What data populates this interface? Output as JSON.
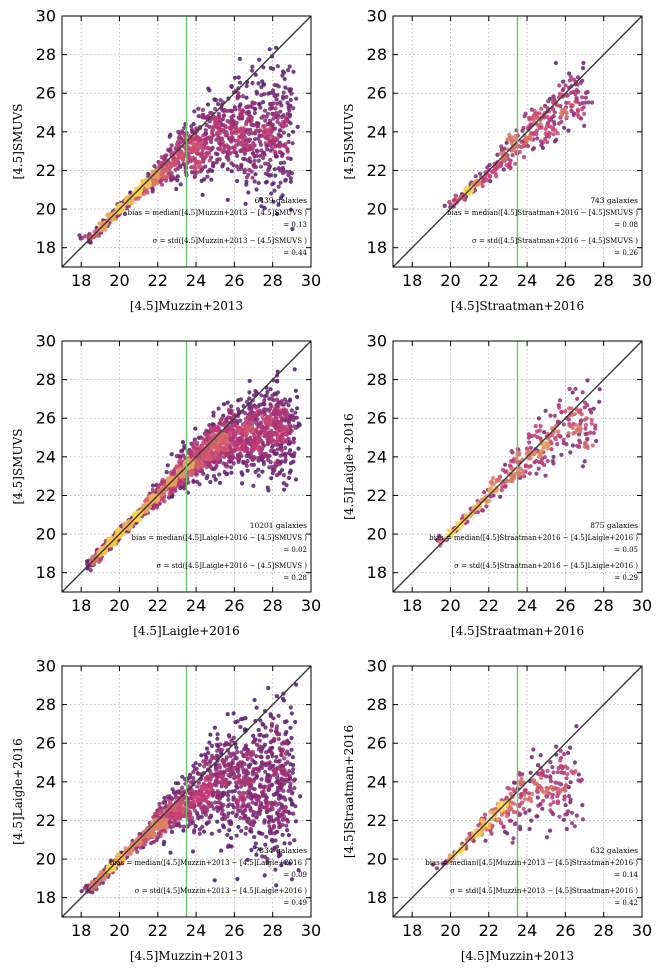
{
  "colors": {
    "identity_line": "#3a3a3a",
    "cut_line": "#6cc26c",
    "grid": "#b0b0b0",
    "density_low": "#2a0f6e",
    "density_mid": "#c23b75",
    "density_high": "#fbd34a"
  },
  "chart_data": [
    {
      "type": "scatter",
      "xlabel": "[4.5]Muzzin+2013",
      "ylabel": "[4.5]SMUVS",
      "xlim": [
        17,
        30
      ],
      "ylim": [
        17,
        30
      ],
      "xticks": [
        "18",
        "20",
        "22",
        "24",
        "26",
        "28",
        "30"
      ],
      "yticks": [
        "18",
        "20",
        "22",
        "24",
        "26",
        "28",
        "30"
      ],
      "grid": true,
      "identity_line": true,
      "vertical_cut_x": 23.5,
      "n_galaxies": 6439,
      "count_text": "6439 galaxies",
      "bias_formula": "bias = median([4.5]Muzzin+2013 − [4.5]SMUVS )",
      "bias_value": 0.13,
      "bias_text": "= 0.13",
      "sigma_formula": "σ = std([4.5]Muzzin+2013 − [4.5]SMUVS )",
      "sigma_value": 0.44,
      "sigma_text": "= 0.44",
      "trend": {
        "x": [
          18.5,
          20,
          22,
          23,
          24,
          25,
          26,
          27,
          28,
          29
        ],
        "y": [
          18.5,
          20.0,
          21.8,
          22.8,
          23.3,
          23.7,
          24.0,
          24.1,
          24.1,
          24.0
        ]
      }
    },
    {
      "type": "scatter",
      "xlabel": "[4.5]Straatman+2016",
      "ylabel": "[4.5]SMUVS",
      "xlim": [
        17,
        30
      ],
      "ylim": [
        17,
        30
      ],
      "xticks": [
        "18",
        "20",
        "22",
        "24",
        "26",
        "28",
        "30"
      ],
      "yticks": [
        "18",
        "20",
        "22",
        "24",
        "26",
        "28",
        "30"
      ],
      "grid": true,
      "identity_line": true,
      "vertical_cut_x": 23.5,
      "n_galaxies": 743,
      "count_text": "743 galaxies",
      "bias_formula": "bias = median([4.5]Straatman+2016 − [4.5]SMUVS )",
      "bias_value": 0.08,
      "bias_text": "= 0.08",
      "sigma_formula": "σ = std([4.5]Straatman+2016 − [4.5]SMUVS )",
      "sigma_value": 0.26,
      "sigma_text": "= 0.26",
      "trend": {
        "x": [
          20,
          21,
          22,
          23,
          24,
          25,
          26,
          27
        ],
        "y": [
          20.2,
          21.0,
          21.9,
          22.9,
          23.9,
          24.8,
          25.4,
          25.8
        ]
      }
    },
    {
      "type": "scatter",
      "xlabel": "[4.5]Laigle+2016",
      "ylabel": "[4.5]SMUVS",
      "xlim": [
        17,
        30
      ],
      "ylim": [
        17,
        30
      ],
      "xticks": [
        "18",
        "20",
        "22",
        "24",
        "26",
        "28",
        "30"
      ],
      "yticks": [
        "18",
        "20",
        "22",
        "24",
        "26",
        "28",
        "30"
      ],
      "grid": true,
      "identity_line": true,
      "vertical_cut_x": 23.5,
      "n_galaxies": 10201,
      "count_text": "10201 galaxies",
      "bias_formula": "bias = median([4.5]Laigle+2016 − [4.5]SMUVS )",
      "bias_value": 0.02,
      "bias_text": "= 0.02",
      "sigma_formula": "σ = std([4.5]Laigle+2016 − [4.5]SMUVS )",
      "sigma_value": 0.28,
      "sigma_text": "= 0.28",
      "trend": {
        "x": [
          18.5,
          20,
          22,
          23,
          24,
          25,
          26,
          27,
          28,
          29
        ],
        "y": [
          18.5,
          20.0,
          22.0,
          23.0,
          23.9,
          24.6,
          25.0,
          25.2,
          25.3,
          25.3
        ]
      }
    },
    {
      "type": "scatter",
      "xlabel": "[4.5]Straatman+2016",
      "ylabel": "[4.5]Laigle+2016",
      "xlim": [
        17,
        30
      ],
      "ylim": [
        17,
        30
      ],
      "xticks": [
        "18",
        "20",
        "22",
        "24",
        "26",
        "28",
        "30"
      ],
      "yticks": [
        "18",
        "20",
        "22",
        "24",
        "26",
        "28",
        "30"
      ],
      "grid": true,
      "identity_line": true,
      "vertical_cut_x": 23.5,
      "n_galaxies": 875,
      "count_text": "875 galaxies",
      "bias_formula": "bias = median([4.5]Straatman+2016 − [4.5]Laigle+2016 )",
      "bias_value": 0.05,
      "bias_text": "= 0.05",
      "sigma_formula": "σ = std([4.5]Straatman+2016 − [4.5]Laigle+2016 )",
      "sigma_value": 0.29,
      "sigma_text": "= 0.29",
      "trend": {
        "x": [
          19.5,
          20.5,
          21.5,
          22.5,
          23.5,
          24.5,
          25.5,
          26.5,
          27.5
        ],
        "y": [
          19.6,
          20.5,
          21.5,
          22.5,
          23.5,
          24.4,
          25.2,
          25.7,
          25.9
        ]
      }
    },
    {
      "type": "scatter",
      "xlabel": "[4.5]Muzzin+2013",
      "ylabel": "[4.5]Laigle+2016",
      "xlim": [
        17,
        30
      ],
      "ylim": [
        17,
        30
      ],
      "xticks": [
        "18",
        "20",
        "22",
        "24",
        "26",
        "28",
        "30"
      ],
      "yticks": [
        "18",
        "20",
        "22",
        "24",
        "26",
        "28",
        "30"
      ],
      "grid": true,
      "identity_line": true,
      "vertical_cut_x": 23.5,
      "n_galaxies": 7834,
      "count_text": "7834 galaxies",
      "bias_formula": "bias = median([4.5]Muzzin+2013 − [4.5]Laigle+2016 )",
      "bias_value": 0.09,
      "bias_text": "= 0.09",
      "sigma_formula": "σ = std([4.5]Muzzin+2013 − [4.5]Laigle+2016 )",
      "sigma_value": 0.49,
      "sigma_text": "= 0.49",
      "trend": {
        "x": [
          18.5,
          20,
          22,
          23,
          24,
          25,
          26,
          27,
          28,
          29
        ],
        "y": [
          18.5,
          20.0,
          21.8,
          22.7,
          23.3,
          23.7,
          23.9,
          23.9,
          23.8,
          23.7
        ]
      }
    },
    {
      "type": "scatter",
      "xlabel": "[4.5]Muzzin+2013",
      "ylabel": "[4.5]Straatman+2016",
      "xlim": [
        17,
        30
      ],
      "ylim": [
        17,
        30
      ],
      "xticks": [
        "18",
        "20",
        "22",
        "24",
        "26",
        "28",
        "30"
      ],
      "yticks": [
        "18",
        "20",
        "22",
        "24",
        "26",
        "28",
        "30"
      ],
      "grid": true,
      "identity_line": true,
      "vertical_cut_x": 23.5,
      "n_galaxies": 632,
      "count_text": "632 galaxies",
      "bias_formula": "bias = median([4.5]Muzzin+2013 − [4.5]Straatman+2016 )",
      "bias_value": 0.14,
      "bias_text": "= 0.14",
      "sigma_formula": "σ = std([4.5]Muzzin+2013 − [4.5]Straatman+2016 )",
      "sigma_value": 0.42,
      "sigma_text": "= 0.42",
      "trend": {
        "x": [
          19.5,
          20.5,
          21.5,
          22.5,
          23.5,
          24.5,
          25.5,
          26.5
        ],
        "y": [
          19.6,
          20.5,
          21.5,
          22.4,
          23.1,
          23.5,
          23.6,
          23.6
        ]
      }
    }
  ]
}
